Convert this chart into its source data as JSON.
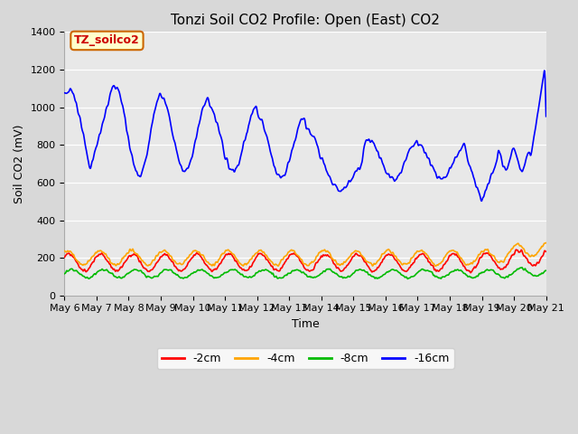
{
  "title": "Tonzi Soil CO2 Profile: Open (East) CO2",
  "ylabel": "Soil CO2 (mV)",
  "xlabel": "Time",
  "ylim": [
    0,
    1400
  ],
  "yticks": [
    0,
    200,
    400,
    600,
    800,
    1000,
    1200,
    1400
  ],
  "x_tick_labels": [
    "May 6",
    "May 7",
    "May 8",
    "May 9",
    "May 10",
    "May 11",
    "May 12",
    "May 13",
    "May 14",
    "May 15",
    "May 16",
    "May 17",
    "May 18",
    "May 19",
    "May 20",
    "May 21"
  ],
  "label_box_text": "TZ_soilco2",
  "label_box_facecolor": "#ffffcc",
  "label_box_edgecolor": "#cc6600",
  "fig_facecolor": "#d8d8d8",
  "plot_bg_color": "#e8e8e8",
  "title_fontsize": 11,
  "axis_label_fontsize": 9,
  "tick_fontsize": 8,
  "legend_labels": [
    "-2cm",
    "-4cm",
    "-8cm",
    "-16cm"
  ],
  "legend_colors": [
    "#ff0000",
    "#ffa500",
    "#00bb00",
    "#0000ff"
  ],
  "line_width": 1.2
}
